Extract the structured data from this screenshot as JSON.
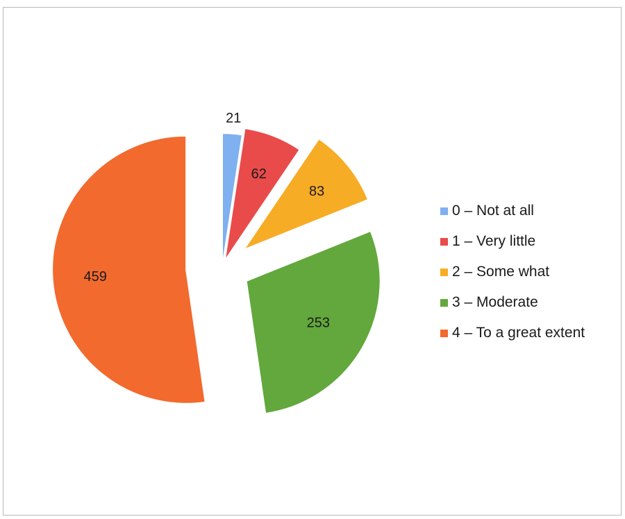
{
  "chart_data": {
    "type": "pie",
    "title": "",
    "categories": [
      "0 – Not at all",
      "1 – Very little",
      "2 – Some what",
      "3 – Moderate",
      "4 – To a great extent"
    ],
    "values": [
      21,
      62,
      83,
      253,
      459
    ],
    "colors": [
      "#7fb0f0",
      "#e94b4b",
      "#f7ac26",
      "#62a83c",
      "#f26a2e"
    ],
    "exploded": true,
    "data_labels": true,
    "legend_position": "right"
  }
}
